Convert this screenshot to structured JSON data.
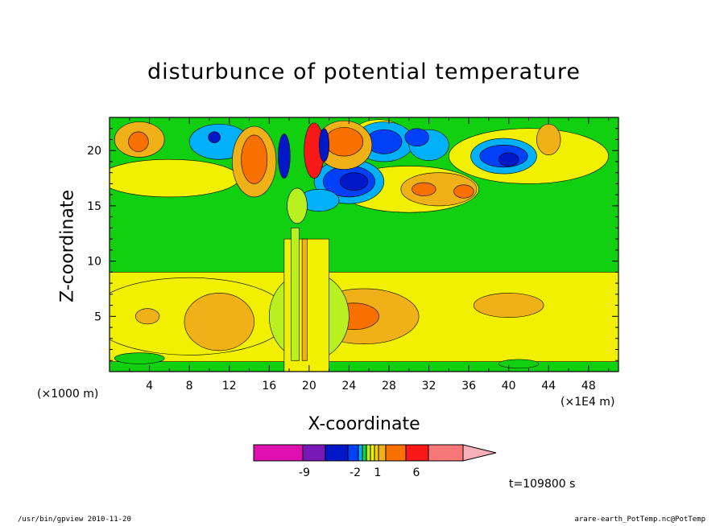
{
  "title": "disturbunce of potential temperature",
  "chart_data": {
    "type": "heatmap",
    "title": "disturbunce of potential temperature",
    "xlabel": "X-coordinate",
    "ylabel": "Z-coordinate",
    "x_unit_left": "(×1000 m)",
    "x_unit_right": "(×1E4 m)",
    "xlim": [
      0,
      51
    ],
    "ylim": [
      0,
      23
    ],
    "x_ticks": [
      "4",
      "8",
      "12",
      "16",
      "20",
      "24",
      "28",
      "32",
      "36",
      "40",
      "44",
      "48"
    ],
    "y_ticks": [
      "5",
      "10",
      "15",
      "20"
    ],
    "colorbar_labels": [
      "-9",
      "-2",
      "1",
      "6"
    ],
    "colorbar_colors": [
      "#e010b0",
      "#7818b8",
      "#0018c8",
      "#0040f8",
      "#00b0f8",
      "#10d050",
      "#b8f020",
      "#f0f000",
      "#f8d000",
      "#f0b018",
      "#f87000",
      "#f81818",
      "#f87878",
      "#f8b0b8"
    ],
    "palette": {
      "background": "#10d010",
      "light_yellow": "#f0f000",
      "yellow_green": "#b8f020",
      "orange_light": "#f0b018",
      "orange": "#f87000",
      "cyan": "#00b0f8",
      "blue": "#0040f8",
      "dark_blue": "#0018c8",
      "red": "#f81818",
      "magenta": "#e010b0"
    },
    "time_label": "t=109800 s"
  },
  "footer": {
    "left": "/usr/bin/gpview  2010-11-20",
    "right": "arare-earth_PotTemp.nc@PotTemp"
  }
}
